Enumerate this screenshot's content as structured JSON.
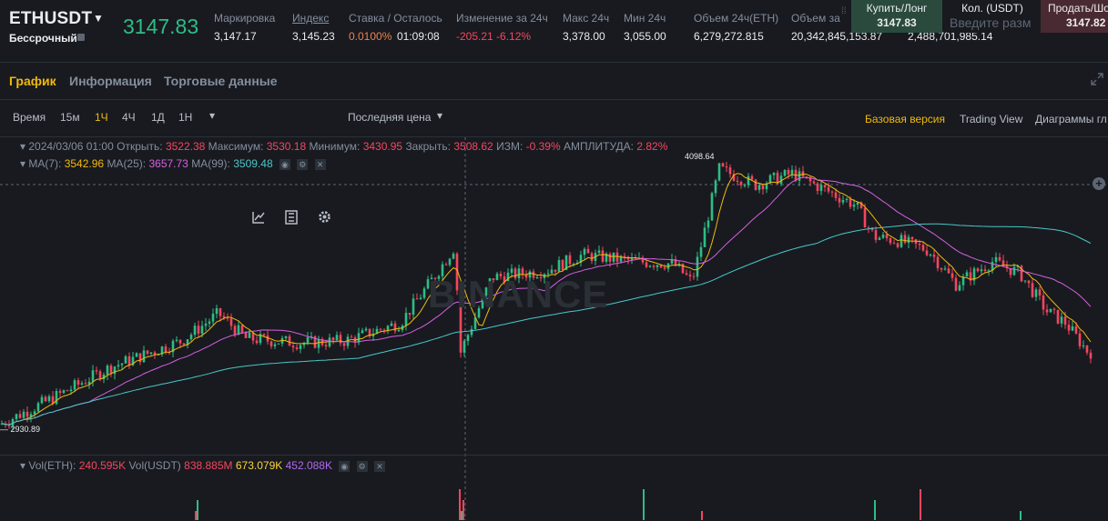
{
  "header": {
    "symbol": "ETHUSDT",
    "contract_type": "Бессрочный",
    "last_price": "3147.83",
    "stats": [
      {
        "label": "Маркировка",
        "value": "3,147.17"
      },
      {
        "label": "Индекс",
        "value": "3,145.23"
      },
      {
        "label": "Ставка / Осталось",
        "value_rate": "0.0100%",
        "value_time": "01:09:08"
      },
      {
        "label": "Изменение за 24ч",
        "value": "-205.21 -6.12%"
      },
      {
        "label": "Макс 24ч",
        "value": "3,378.00"
      },
      {
        "label": "Мин 24ч",
        "value": "3,055.00"
      },
      {
        "label": "Объем 24ч(ETH)",
        "value": "6,279,272.815"
      },
      {
        "label": "Объем за",
        "value": "20,342,845,153.87"
      },
      {
        "label": "",
        "value": "2,488,701,985.14"
      }
    ],
    "buy": {
      "label": "Купить/Лонг",
      "price": "3147.83"
    },
    "qty": {
      "label": "Кол. (USDT)",
      "placeholder": "Введите разм"
    },
    "sell": {
      "label": "Продать/Шо",
      "price": "3147.82"
    }
  },
  "tabs": [
    "График",
    "Информация",
    "Торговые данные"
  ],
  "toolbar": {
    "time_label": "Время",
    "intervals": [
      "15м",
      "1Ч",
      "4Ч",
      "1Д",
      "1Н"
    ],
    "active_interval": "1Ч",
    "price_type": "Последняя цена",
    "views": [
      "Базовая версия",
      "Trading View",
      "Диаграммы гл"
    ],
    "active_view": "Базовая версия"
  },
  "legend": {
    "date": "2024/03/06 01:00",
    "open_label": "Открыть:",
    "open": "3522.38",
    "high_label": "Максимум:",
    "high": "3530.18",
    "low_label": "Минимум:",
    "low": "3430.95",
    "close_label": "Закрыть:",
    "close": "3508.62",
    "change_label": "ИЗМ:",
    "change": "-0.39%",
    "amp_label": "АМПЛИТУДА:",
    "amp": "2.82%",
    "ma7_label": "MA(7):",
    "ma7": "3542.96",
    "ma25_label": "MA(25):",
    "ma25": "3657.73",
    "ma99_label": "MA(99):",
    "ma99": "3509.48",
    "vol_eth_label": "Vol(ETH):",
    "vol_eth": "240.595K",
    "vol_usdt_label": "Vol(USDT)",
    "vol_usdt": "838.885M",
    "vol_ma1": "673.079K",
    "vol_ma2": "452.088K"
  },
  "marks": {
    "high": "4098.64",
    "low": "2930.89"
  },
  "watermark": "BINANCE",
  "colors": {
    "up": "#2ebd85",
    "down": "#f6465d",
    "accent": "#f0b90b",
    "ma7": "#f0b90b",
    "ma25": "#d660e0",
    "ma99": "#4ac7c7"
  },
  "icons": [
    "caret-down-icon",
    "indicator-icon",
    "candle-type-icon",
    "settings-gear-icon",
    "expand-icon",
    "plus-icon"
  ]
}
